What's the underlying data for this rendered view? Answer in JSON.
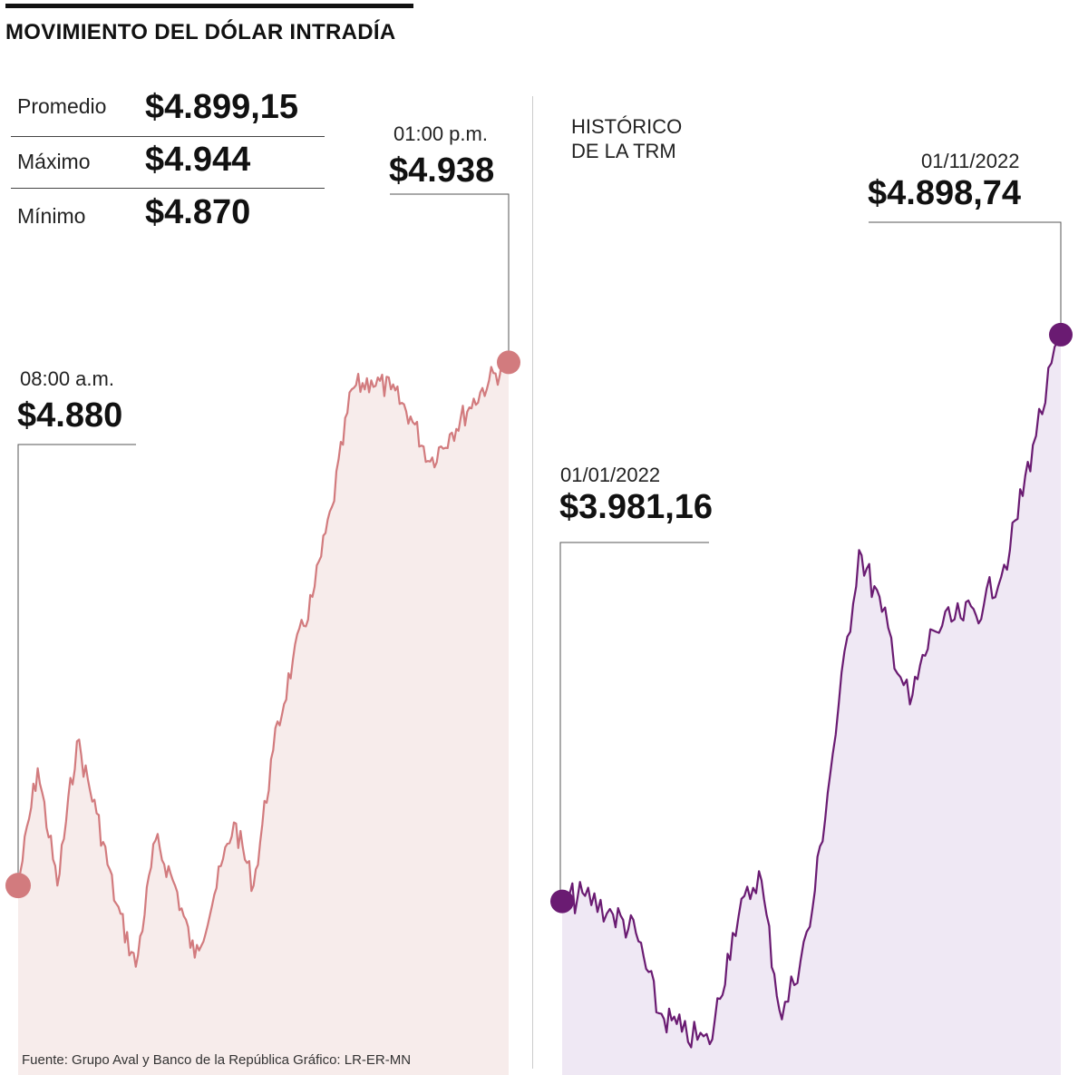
{
  "header": {
    "title": "MOVIMIENTO DEL DÓLAR INTRADÍA"
  },
  "stats": [
    {
      "label": "Promedio",
      "value": "$4.899,15"
    },
    {
      "label": "Máximo",
      "value": "$4.944"
    },
    {
      "label": "Mínimo",
      "value": "$4.870"
    }
  ],
  "intraday": {
    "start_time": "08:00 a.m.",
    "start_value": "$4.880",
    "end_time": "01:00 p.m.",
    "end_value": "$4.938"
  },
  "historical": {
    "label_line1": "HISTÓRICO",
    "label_line2": "DE LA TRM",
    "start_date": "01/01/2022",
    "start_value": "$3.981,16",
    "end_date": "01/11/2022",
    "end_value": "$4.898,74"
  },
  "footer": {
    "source": "Fuente: Grupo Aval y Banco de la República    Gráfico: LR-ER-MN"
  },
  "colors": {
    "intraday_line": "#d27b7e",
    "intraday_fill": "#f7eceb",
    "historical_line": "#6a1b72",
    "historical_fill": "#efe8f4",
    "divider": "#cccccc"
  },
  "chart_data": [
    {
      "type": "area",
      "title": "",
      "x_unit": "hour",
      "x": [
        8.0,
        8.2,
        8.4,
        8.6,
        8.8,
        9.0,
        9.2,
        9.4,
        9.6,
        9.8,
        10.0,
        10.2,
        10.4,
        10.6,
        10.8,
        11.0,
        11.2,
        11.4,
        11.6,
        11.8,
        12.0,
        12.2,
        12.4,
        12.6,
        12.8,
        13.0
      ],
      "values": [
        4880,
        4893,
        4880,
        4896,
        4888,
        4878,
        4871,
        4885,
        4880,
        4872,
        4879,
        4887,
        4880,
        4895,
        4905,
        4912,
        4922,
        4935,
        4936,
        4935,
        4932,
        4927,
        4930,
        4933,
        4936,
        4938
      ],
      "max": 4944,
      "min": 4870,
      "average": 4899.15,
      "ylim": [
        4859,
        4949
      ]
    },
    {
      "type": "area",
      "title": "",
      "x": [
        "2022-01-01",
        "2022-01-15",
        "2022-02-01",
        "2022-02-15",
        "2022-03-01",
        "2022-03-15",
        "2022-04-01",
        "2022-04-15",
        "2022-05-01",
        "2022-05-15",
        "2022-06-01",
        "2022-06-15",
        "2022-07-01",
        "2022-07-15",
        "2022-08-01",
        "2022-08-15",
        "2022-09-01",
        "2022-09-15",
        "2022-10-01",
        "2022-10-15",
        "2022-11-01"
      ],
      "values": [
        3981.16,
        3990,
        3960,
        3930,
        3800,
        3770,
        3750,
        3930,
        4030,
        3790,
        3940,
        4220,
        4550,
        4450,
        4300,
        4420,
        4440,
        4460,
        4550,
        4720,
        4898.74
      ],
      "ylim": [
        3700,
        5000
      ]
    }
  ]
}
